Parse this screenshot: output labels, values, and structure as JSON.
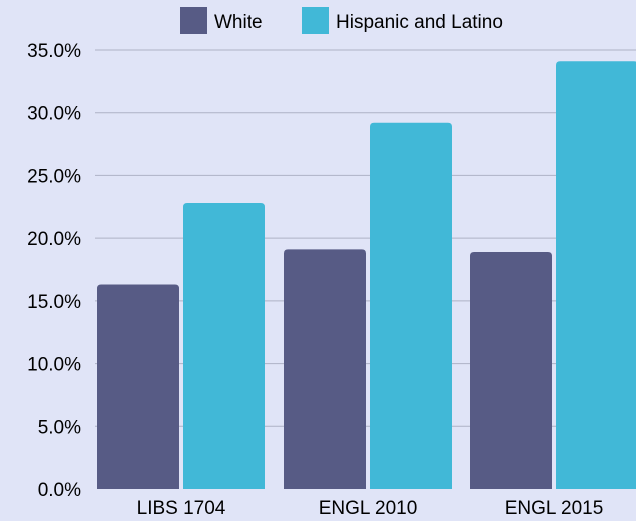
{
  "chart_data": {
    "type": "bar",
    "categories": [
      "LIBS 1704",
      "ENGL 2010",
      "ENGL 2015"
    ],
    "series": [
      {
        "name": "White",
        "values": [
          16.3,
          19.1,
          18.9
        ],
        "color": "#575b85"
      },
      {
        "name": "Hispanic and Latino",
        "values": [
          22.8,
          29.2,
          34.1
        ],
        "color": "#41b8d7"
      }
    ],
    "y_ticks": [
      "0.0%",
      "5.0%",
      "10.0%",
      "15.0%",
      "20.0%",
      "25.0%",
      "30.0%",
      "35.0%"
    ],
    "ylim": [
      0,
      35
    ],
    "grid": true,
    "legend_position": "top",
    "title": "",
    "xlabel": "",
    "ylabel": ""
  },
  "background_color": "#e0e4f7"
}
